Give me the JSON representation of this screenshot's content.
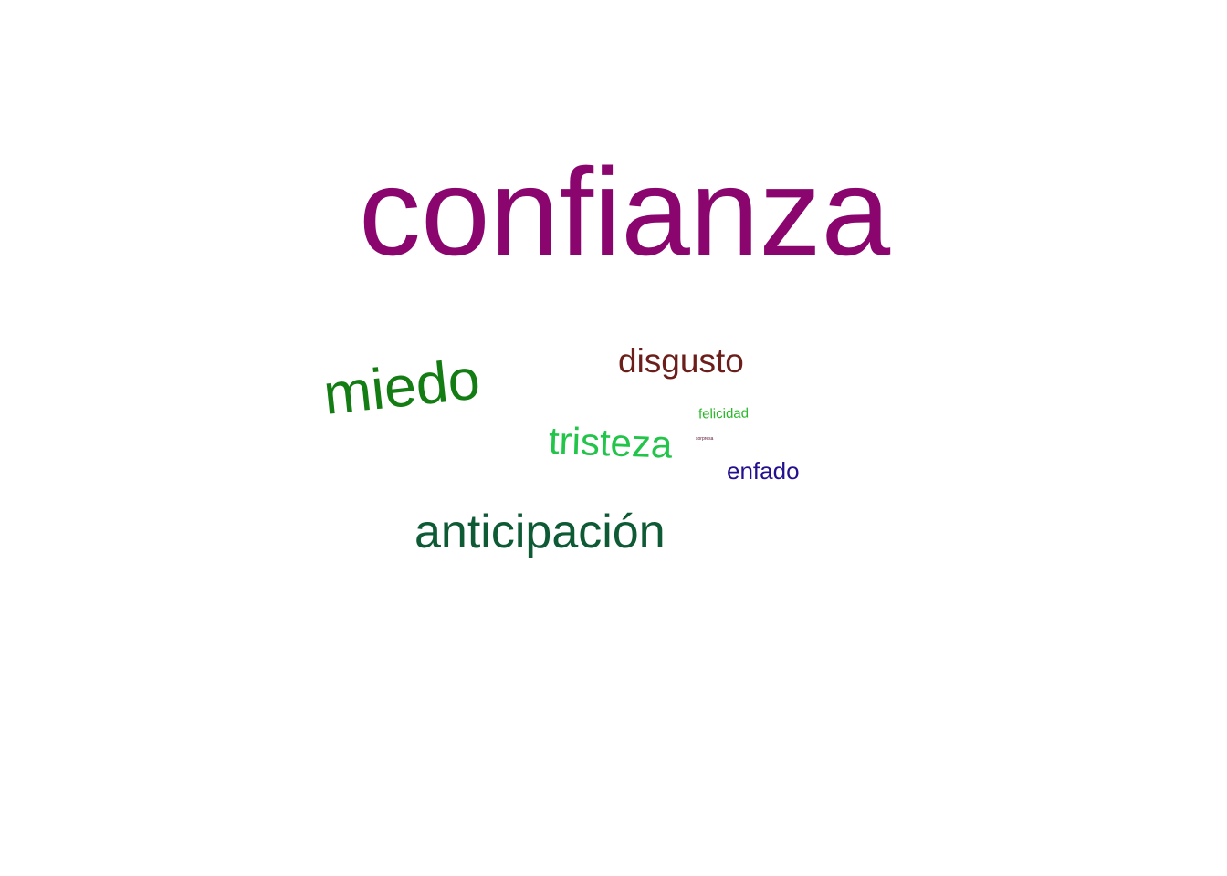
{
  "words": [
    {
      "key": "confianza",
      "text": "confianza",
      "color": "#8b056f"
    },
    {
      "key": "miedo",
      "text": "miedo",
      "color": "#137c13"
    },
    {
      "key": "disgusto",
      "text": "disgusto",
      "color": "#6b1e1a"
    },
    {
      "key": "tristeza",
      "text": "tristeza",
      "color": "#22c44a"
    },
    {
      "key": "felicidad",
      "text": "felicidad",
      "color": "#28b828"
    },
    {
      "key": "sorpresa",
      "text": "sorpresa",
      "color": "#5a1030"
    },
    {
      "key": "enfado",
      "text": "enfado",
      "color": "#23108f"
    },
    {
      "key": "anticipacion",
      "text": "anticipación",
      "color": "#0e5a35"
    }
  ]
}
